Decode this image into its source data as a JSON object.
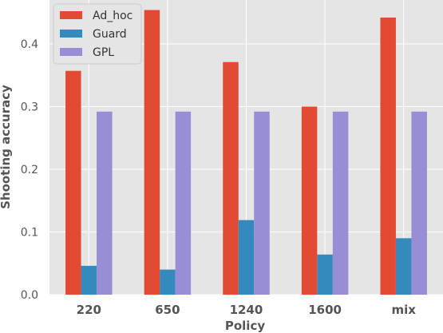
{
  "chart_data": {
    "type": "bar",
    "title": "",
    "xlabel": "Policy",
    "ylabel": "Shooting accuracy",
    "categories": [
      "220",
      "650",
      "1240",
      "1600",
      "mix"
    ],
    "series": [
      {
        "name": "Ad_hoc",
        "color": "#E24A33",
        "values": [
          0.357,
          0.454,
          0.371,
          0.3,
          0.442
        ]
      },
      {
        "name": "Guard",
        "color": "#348ABD",
        "values": [
          0.046,
          0.04,
          0.119,
          0.064,
          0.09
        ]
      },
      {
        "name": "GPL",
        "color": "#988ED5",
        "values": [
          0.292,
          0.292,
          0.292,
          0.292,
          0.292
        ]
      }
    ],
    "ylim": [
      0,
      0.47
    ],
    "yticks": [
      "0.0",
      "0.1",
      "0.2",
      "0.3",
      "0.4"
    ],
    "grid": true,
    "legend_position": "top-left",
    "background": "#E5E5E5",
    "grid_color": "#FFFFFF"
  }
}
